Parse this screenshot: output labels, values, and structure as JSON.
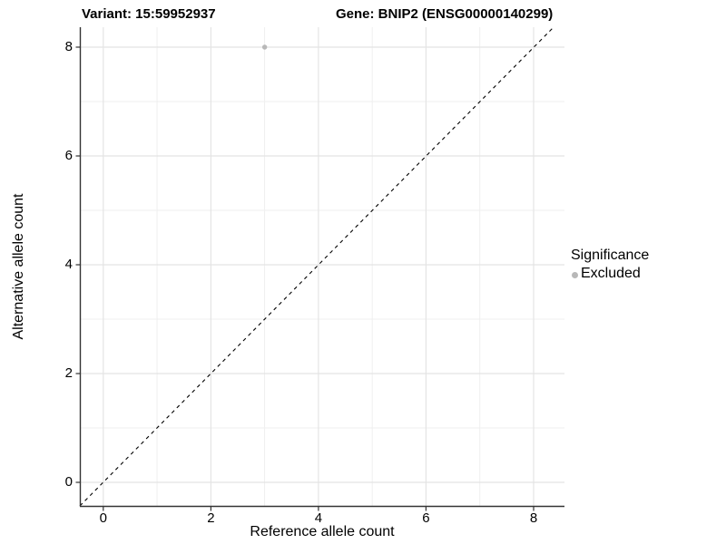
{
  "header": {
    "variant_title": "Variant: 15:59952937",
    "gene_title": "Gene: BNIP2 (ENSG00000140299)"
  },
  "chart_data": {
    "type": "scatter",
    "title": "Variant: 15:59952937 — Gene: BNIP2 (ENSG00000140299)",
    "xlabel": "Reference allele count",
    "ylabel": "Alternative allele count",
    "x_ticks": [
      "0",
      "2",
      "4",
      "6",
      "8"
    ],
    "y_ticks": [
      "0",
      "2",
      "4",
      "6",
      "8"
    ],
    "x_tick_values": [
      0,
      2,
      4,
      6,
      8
    ],
    "y_tick_values": [
      0,
      2,
      4,
      6,
      8
    ],
    "xlim": [
      -0.43,
      8.58
    ],
    "ylim": [
      -0.43,
      8.37
    ],
    "grid": true,
    "reference_line": {
      "type": "identity y=x",
      "style": "dashed",
      "color": "#000000"
    },
    "series": [
      {
        "name": "Excluded",
        "color": "#b8b8b8",
        "points": [
          {
            "x": 3,
            "y": 8
          }
        ]
      }
    ],
    "legend": {
      "position": "right",
      "title": "Significance",
      "entries": [
        {
          "label": "Excluded",
          "color": "#b8b8b8"
        }
      ]
    }
  },
  "colors": {
    "axis_line": "#333333",
    "grid_major": "#e4e4e4",
    "grid_minor": "#efefef",
    "point": "#b8b8b8",
    "background": "#ffffff"
  }
}
